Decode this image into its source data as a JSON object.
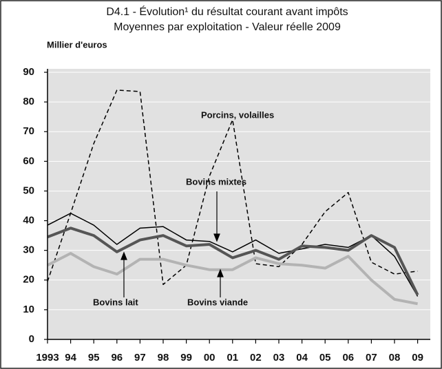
{
  "chart_data": {
    "type": "line",
    "title": [
      "D4.1 - Évolution¹ du résultat courant avant impôts",
      "Moyennes par exploitation - Valeur réelle 2009"
    ],
    "y_label": "Millier d'euros",
    "categories": [
      "1993",
      "94",
      "95",
      "96",
      "97",
      "98",
      "99",
      "00",
      "01",
      "02",
      "03",
      "04",
      "05",
      "06",
      "07",
      "08",
      "09"
    ],
    "series": [
      {
        "name": "Porcins, volailles",
        "color": "#000000",
        "dash": true,
        "width": 1.5,
        "values": [
          19.5,
          42.5,
          66,
          84,
          83.5,
          18.5,
          25,
          55,
          74,
          25.5,
          24.5,
          32,
          43,
          49.5,
          26,
          22,
          23
        ]
      },
      {
        "name": "Bovins mixtes",
        "color": "#000000",
        "dash": false,
        "width": 1.5,
        "values": [
          38.5,
          42.5,
          38.5,
          32,
          37.5,
          38,
          33.5,
          33,
          29.5,
          33.5,
          29,
          30.5,
          32,
          31,
          35,
          28,
          14.5
        ]
      },
      {
        "name": "Bovins lait",
        "color": "#555555",
        "dash": false,
        "width": 4,
        "values": [
          34.5,
          37.5,
          35,
          29.5,
          33.5,
          35,
          31.5,
          32,
          27.5,
          30,
          27,
          31.5,
          31,
          30,
          35,
          31,
          15
        ]
      },
      {
        "name": "Bovins viande",
        "color": "#b3b3b3",
        "dash": false,
        "width": 4,
        "values": [
          25,
          29,
          24.5,
          22,
          27,
          27,
          25,
          23.5,
          23.5,
          27.5,
          25.5,
          25,
          24,
          28,
          20,
          13.5,
          12
        ]
      }
    ],
    "ylim": [
      0,
      90
    ],
    "yticks": [
      0,
      10,
      20,
      30,
      40,
      50,
      60,
      70,
      80,
      90
    ],
    "grid": true
  }
}
